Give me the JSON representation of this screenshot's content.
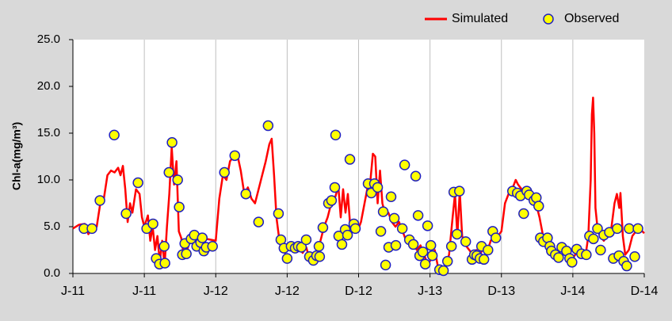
{
  "chart_data": {
    "type": "line",
    "y_label": "Chl-a(mg/m³)",
    "xlim": [
      0,
      48
    ],
    "ylim": [
      0,
      25
    ],
    "xticks": [
      {
        "value": 0,
        "label": "J-11"
      },
      {
        "value": 6,
        "label": "J-11"
      },
      {
        "value": 12,
        "label": "J-12"
      },
      {
        "value": 18,
        "label": "J-12"
      },
      {
        "value": 24,
        "label": "D-12"
      },
      {
        "value": 30,
        "label": "J-13"
      },
      {
        "value": 36,
        "label": "D-13"
      },
      {
        "value": 42,
        "label": "J-14"
      },
      {
        "value": 48,
        "label": "D-14"
      }
    ],
    "yticks": [
      {
        "value": 0,
        "label": "0.0"
      },
      {
        "value": 5,
        "label": "5.0"
      },
      {
        "value": 10,
        "label": "10.0"
      },
      {
        "value": 15,
        "label": "15.0"
      },
      {
        "value": 20,
        "label": "20.0"
      },
      {
        "value": 25,
        "label": "25.0"
      }
    ],
    "x_grid": true,
    "legend": "top-right",
    "series": [
      {
        "name": "Simulated",
        "type": "line",
        "color": "#ff0000",
        "x": [
          0,
          0.5,
          1,
          1.3,
          1.6,
          2,
          2.3,
          2.6,
          2.9,
          3.2,
          3.5,
          3.8,
          4,
          4.2,
          4.4,
          4.6,
          4.8,
          5,
          5.3,
          5.6,
          5.8,
          6,
          6.3,
          6.5,
          6.7,
          6.9,
          7.1,
          7.3,
          7.5,
          7.7,
          7.9,
          8.1,
          8.3,
          8.5,
          8.7,
          8.9,
          9.1,
          9.3,
          9.6,
          9.9,
          10.2,
          10.5,
          10.8,
          11.2,
          11.6,
          12,
          12.3,
          12.6,
          12.9,
          13.2,
          13.5,
          13.8,
          14.1,
          14.4,
          14.7,
          15,
          15.3,
          15.6,
          15.9,
          16.2,
          16.5,
          16.7,
          16.9,
          17.1,
          17.3,
          17.5,
          17.8,
          18.1,
          18.4,
          18.7,
          19,
          19.3,
          19.6,
          19.9,
          20.2,
          20.5,
          20.8,
          21.1,
          21.4,
          21.7,
          22,
          22.3,
          22.5,
          22.7,
          22.9,
          23.1,
          23.3,
          23.6,
          23.9,
          24.2,
          24.5,
          24.8,
          25,
          25.2,
          25.4,
          25.6,
          25.8,
          26,
          26.2,
          26.5,
          26.8,
          27.1,
          27.4,
          27.7,
          28,
          28.3,
          28.6,
          28.9,
          29.2,
          29.5,
          29.8,
          30.1,
          30.4,
          30.7,
          31,
          31.3,
          31.6,
          31.9,
          32.1,
          32.3,
          32.5,
          32.7,
          33,
          33.3,
          33.6,
          33.9,
          34.2,
          34.5,
          34.8,
          35.1,
          35.4,
          35.7,
          36,
          36.3,
          36.6,
          36.9,
          37.2,
          37.4,
          37.7,
          38,
          38.3,
          38.6,
          38.9,
          39.2,
          39.5,
          39.8,
          40.1,
          40.4,
          40.7,
          41,
          41.3,
          41.6,
          41.9,
          42.2,
          42.5,
          42.8,
          43.1,
          43.3,
          43.5,
          43.6,
          43.7,
          43.8,
          43.9,
          44.1,
          44.3,
          44.6,
          44.9,
          45.2,
          45.5,
          45.7,
          45.9,
          46,
          46.2,
          46.4,
          46.7,
          47,
          47.3,
          47.6,
          48
        ],
        "values": [
          4.8,
          5.2,
          5.3,
          4.2,
          4.8,
          5,
          7.5,
          8,
          10.5,
          11,
          10.8,
          11.3,
          10.5,
          11.5,
          9,
          5.5,
          7.5,
          6.5,
          9,
          8.5,
          6,
          5,
          6.2,
          3.5,
          5,
          2.5,
          4,
          1.2,
          3.5,
          0.8,
          5,
          8.5,
          13.5,
          9.5,
          12,
          4.5,
          3.8,
          2,
          2.5,
          3.8,
          3.2,
          4,
          3.5,
          3.7,
          3.6,
          3.5,
          8,
          10.5,
          10,
          12,
          12.5,
          12.8,
          11,
          8.5,
          9.2,
          8,
          7.5,
          9,
          10.5,
          12,
          13.8,
          14.4,
          10.5,
          6,
          4,
          2.5,
          2.2,
          3,
          2.8,
          2.5,
          2.8,
          2.2,
          2.8,
          1.5,
          1.9,
          2.5,
          3.5,
          5,
          6,
          7.5,
          8,
          9.3,
          6,
          9,
          6.5,
          8.5,
          5,
          5.5,
          4.5,
          5.5,
          7.5,
          9.5,
          10,
          12.8,
          12.5,
          7.5,
          11,
          7.5,
          6.5,
          6.5,
          5.5,
          5,
          5.5,
          4.5,
          3.5,
          3,
          3.2,
          2.5,
          3,
          2,
          1,
          1.5,
          2.5,
          0.5,
          0.5,
          0.8,
          2,
          6,
          8.5,
          4,
          8.8,
          4,
          3,
          2.5,
          2,
          2.5,
          2,
          2.8,
          2.3,
          3.5,
          4,
          4,
          4.5,
          7.5,
          8.5,
          9,
          10,
          9.5,
          9,
          8.5,
          9,
          8.5,
          7.5,
          6,
          4,
          3.5,
          3,
          2.5,
          2,
          2.5,
          2,
          1.8,
          1.5,
          2,
          2.5,
          2,
          2.2,
          4,
          10,
          17,
          18.8,
          15,
          7,
          4.5,
          4,
          3.5,
          4,
          4.5,
          7.5,
          8.5,
          7,
          8.6,
          4,
          2,
          2.5,
          4,
          4.5,
          4.8,
          4.3
        ]
      },
      {
        "name": "Observed",
        "type": "scatter",
        "color": "#ffff00",
        "edge_color": "#2020c0",
        "x": [
          0.93,
          1.6,
          2.27,
          3.47,
          4.47,
          5.47,
          6.2,
          6.73,
          7,
          7.27,
          7.67,
          7.73,
          8.07,
          8.33,
          8.8,
          8.93,
          9.2,
          9.4,
          9.53,
          9.93,
          10.2,
          10.4,
          10.73,
          10.87,
          11,
          11.2,
          11.73,
          12.73,
          13.6,
          14.53,
          15.6,
          16.4,
          17.27,
          17.47,
          17.73,
          18,
          18.33,
          18.67,
          18.93,
          19.2,
          19.6,
          19.87,
          20.2,
          20.47,
          20.67,
          20.73,
          21,
          21.47,
          21.73,
          22,
          22.07,
          22.33,
          22.6,
          22.87,
          23.07,
          23.27,
          23.6,
          23.73,
          24.8,
          25.07,
          25.33,
          25.6,
          25.87,
          26.07,
          26.27,
          26.53,
          26.73,
          27,
          27.13,
          27.67,
          27.87,
          28.27,
          28.6,
          28.8,
          29,
          29.13,
          29.4,
          29.6,
          29.8,
          30.07,
          30.2,
          30.8,
          31.13,
          31.47,
          31.8,
          32,
          32.27,
          32.47,
          33,
          33.53,
          33.73,
          33.93,
          34.2,
          34.33,
          34.53,
          34.87,
          35.27,
          35.53,
          36.93,
          37.33,
          37.6,
          37.87,
          38.13,
          38.33,
          38.73,
          38.93,
          39.13,
          39.27,
          39.53,
          39.87,
          40.07,
          40.2,
          40.53,
          40.8,
          41.07,
          41.47,
          41.73,
          41.93,
          42.33,
          42.73,
          43.13,
          43.4,
          43.73,
          44.07,
          44.33,
          44.6,
          45.07,
          45.4,
          45.73,
          45.87,
          46.27,
          46.53,
          46.73,
          47.2,
          47.47
        ],
        "values": [
          4.8,
          4.8,
          7.8,
          14.8,
          6.4,
          9.7,
          4.8,
          5.3,
          1.6,
          1,
          2.9,
          1.1,
          10.8,
          14,
          10,
          7.1,
          2,
          3.2,
          2.1,
          3.7,
          4.1,
          2.9,
          3.3,
          3.8,
          2.4,
          2.8,
          2.9,
          10.8,
          12.6,
          8.5,
          5.5,
          15.8,
          6.4,
          3.6,
          2.7,
          1.6,
          2.9,
          2.7,
          2.9,
          2.8,
          3.6,
          1.8,
          1.4,
          1.9,
          2.9,
          1.8,
          4.9,
          7.5,
          7.8,
          9.2,
          14.8,
          4,
          3.1,
          4.7,
          4.1,
          12.2,
          5.3,
          4.8,
          9.6,
          8.6,
          9.6,
          9.2,
          4.5,
          6.6,
          0.9,
          2.8,
          8.2,
          5.9,
          3,
          4.8,
          11.6,
          3.6,
          3.1,
          10.4,
          6.2,
          1.9,
          2.3,
          1,
          5.1,
          3,
          1.9,
          0.4,
          0.3,
          1.3,
          2.9,
          8.7,
          4.2,
          8.8,
          3.4,
          1.5,
          2,
          1.9,
          1.6,
          2.9,
          1.5,
          2.5,
          4.5,
          3.8,
          8.8,
          8.6,
          8.3,
          6.4,
          8.8,
          8.4,
          7.8,
          8.1,
          7.2,
          3.8,
          3.4,
          3.8,
          2.9,
          2.4,
          2,
          1.7,
          2.8,
          2.4,
          1.6,
          1.2,
          2.6,
          2.1,
          2,
          4,
          3.7,
          4.8,
          2.5,
          4.1,
          4.4,
          1.6,
          4.8,
          1.9,
          1.3,
          0.8,
          4.8,
          1.8,
          4.8
        ]
      }
    ]
  }
}
